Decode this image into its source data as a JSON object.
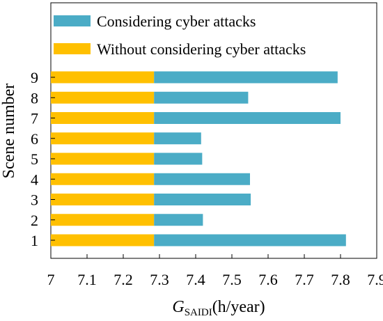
{
  "chart_data": {
    "type": "bar",
    "orientation": "horizontal",
    "stacked": true,
    "categories": [
      "1",
      "2",
      "3",
      "4",
      "5",
      "6",
      "7",
      "8",
      "9"
    ],
    "series": [
      {
        "name": "Without considering cyber attacks",
        "color": "#FFC000",
        "start": [
          7,
          7,
          7,
          7,
          7,
          7,
          7,
          7,
          7
        ],
        "end": [
          7.285,
          7.285,
          7.285,
          7.285,
          7.285,
          7.285,
          7.285,
          7.285,
          7.285
        ]
      },
      {
        "name": "Considering cyber attacks",
        "color": "#4BACC6",
        "start": [
          7.285,
          7.285,
          7.285,
          7.285,
          7.285,
          7.285,
          7.285,
          7.285,
          7.285
        ],
        "end": [
          7.815,
          7.42,
          7.552,
          7.55,
          7.418,
          7.415,
          7.8,
          7.545,
          7.792
        ]
      }
    ],
    "xlim": [
      7,
      7.9
    ],
    "xticks": [
      "7",
      "7.1",
      "7.2",
      "7.3",
      "7.4",
      "7.5",
      "7.6",
      "7.7",
      "7.8",
      "7.9"
    ],
    "xticks_values": [
      7,
      7.1,
      7.2,
      7.3,
      7.4,
      7.5,
      7.6,
      7.7,
      7.8,
      7.9
    ],
    "xlabel_main": "G",
    "xlabel_sub": "SAIDI",
    "xlabel_unit": "(h/year)",
    "ylabel": "Scene number",
    "legend_position": "top-left inside",
    "grid": false
  }
}
